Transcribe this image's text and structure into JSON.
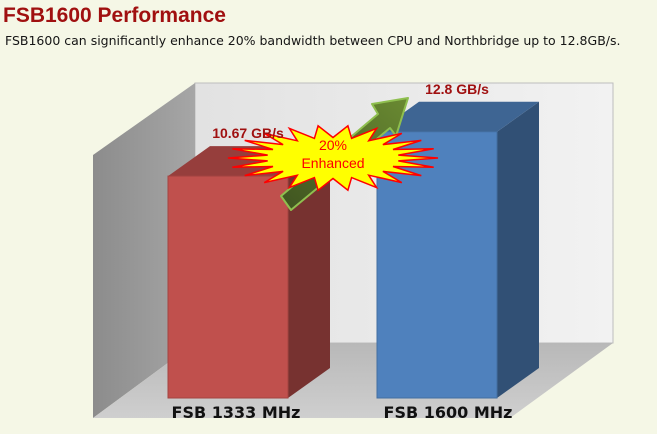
{
  "page": {
    "title": "FSB1600 Performance",
    "subtitle": "FSB1600 can significantly enhance 20% bandwidth between CPU and Northbridge up to 12.8GB/s."
  },
  "chart_data": {
    "type": "bar",
    "style": "3d",
    "categories": [
      "FSB 1333 MHz",
      "FSB 1600 MHz"
    ],
    "values": [
      10.67,
      12.8
    ],
    "unit": "GB/s",
    "value_labels": [
      "10.67 GB/s",
      "12.8 GB/s"
    ],
    "bar_colors": [
      "#c0504d",
      "#4f81bd"
    ],
    "ylim": [
      0,
      16
    ],
    "grid": false,
    "legend": "none",
    "annotation": {
      "lines": [
        "20%",
        "Enhanced"
      ],
      "shape": "starburst",
      "fill": "#ffff00",
      "outline": "#ff0000",
      "text_color": "#ff0000"
    },
    "arrow_color": "#4f6228"
  }
}
